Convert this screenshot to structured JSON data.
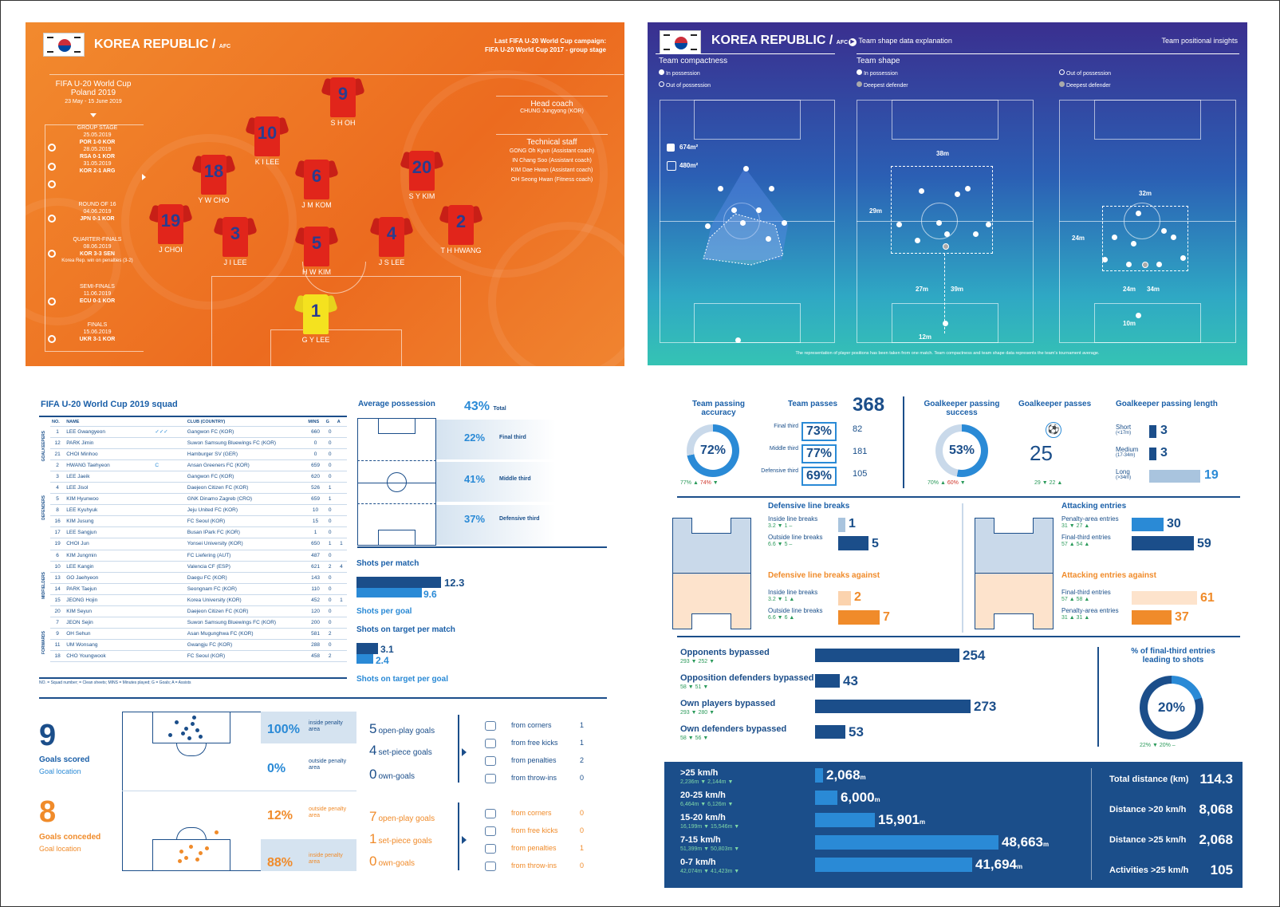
{
  "orange": {
    "team": "KOREA REPUBLIC",
    "slash": "/",
    "conf": "AFC",
    "last_campaign": "Last FIFA U-20 World Cup campaign:",
    "last_campaign2": "FIFA U-20 World Cup 2017 - group stage",
    "tournament": "FIFA U-20 World Cup",
    "tournament2": "Poland 2019",
    "dates": "23 May - 15 June 2019",
    "head_coach_label": "Head coach",
    "head_coach": "CHUNG Jungyong (KOR)",
    "staff_label": "Technical staff",
    "staff": [
      "GONG Oh Kyun (Assistant coach)",
      "IN Chang Soo (Assistant coach)",
      "KIM Dae Hwan (Assistant coach)",
      "OH Seong Hwan (Fitness coach)"
    ],
    "schedule": [
      {
        "stage": "GROUP STAGE",
        "lines": [
          "25.05.2019",
          "POR 1-0 KOR",
          "28.05.2019",
          "RSA 0-1 KOR",
          "31.05.2019",
          "KOR 2-1 ARG"
        ]
      },
      {
        "stage": "ROUND OF 16",
        "lines": [
          "04.06.2019",
          "JPN 0-1 KOR"
        ]
      },
      {
        "stage": "QUARTER-FINALS",
        "lines": [
          "08.06.2019",
          "KOR 3-3 SEN",
          "Korea Rep. win on penalties (3-2)"
        ]
      },
      {
        "stage": "SEMI-FINALS",
        "lines": [
          "11.06.2019",
          "ECU 0-1 KOR"
        ]
      },
      {
        "stage": "FINALS",
        "lines": [
          "15.06.2019",
          "UKR 3-1 KOR"
        ]
      }
    ],
    "players": [
      {
        "num": "9",
        "name": "S H OH"
      },
      {
        "num": "10",
        "name": "K I LEE"
      },
      {
        "num": "18",
        "name": "Y W CHO"
      },
      {
        "num": "6",
        "name": "J M KOM"
      },
      {
        "num": "20",
        "name": "S Y KIM"
      },
      {
        "num": "19",
        "name": "J CHOI"
      },
      {
        "num": "3",
        "name": "J I LEE"
      },
      {
        "num": "5",
        "name": "H W KIM"
      },
      {
        "num": "4",
        "name": "J S LEE"
      },
      {
        "num": "2",
        "name": "T H HWANG"
      },
      {
        "num": "1",
        "name": "G Y LEE"
      }
    ]
  },
  "blue": {
    "team": "KOREA REPUBLIC",
    "slash": "/",
    "conf": "AFC",
    "expl": "Team shape data explanation",
    "insights": "Team positional insights",
    "compact_title": "Team compactness",
    "shape_title": "Team shape",
    "in_poss": "In possession",
    "out_poss": "Out of possession",
    "deepest": "Deepest defender",
    "area_in": "674m²",
    "area_out": "480m²",
    "m1": "38m",
    "m2": "29m",
    "m3": "27m",
    "m4": "39m",
    "m5": "12m",
    "m6": "32m",
    "m7": "24m",
    "m8": "24m",
    "m9": "34m",
    "m10": "10m",
    "footnote": "The representation of player positions has been taken from one match. Team compactness and team shape data represents the team's tournament average."
  },
  "squad": {
    "title": "FIFA U-20 World Cup 2019 squad",
    "headers": [
      "NO.",
      "NAME",
      "CLUB (COUNTRY)",
      "MINS",
      "G",
      "A"
    ],
    "groups": [
      "GOALKEEPERS",
      "DEFENDERS",
      "MIDFIELDERS",
      "FORWARDS"
    ],
    "rows": [
      [
        "1",
        "LEE Gwangyeon",
        "Gangwon FC (KOR)",
        "660",
        "0",
        ""
      ],
      [
        "12",
        "PARK Jimin",
        "Suwon Samsung Bluewings FC (KOR)",
        "0",
        "0",
        ""
      ],
      [
        "21",
        "CHOI Minhoo",
        "Hamburger SV (GER)",
        "0",
        "0",
        ""
      ],
      [
        "2",
        "HWANG Taehyeon",
        "Ansan Greeners FC (KOR)",
        "659",
        "0",
        ""
      ],
      [
        "3",
        "LEE Jaeik",
        "Gangwon FC (KOR)",
        "620",
        "0",
        ""
      ],
      [
        "4",
        "LEE Jisol",
        "Daejeon Citizen FC (KOR)",
        "526",
        "1",
        ""
      ],
      [
        "5",
        "KIM Hyunwoo",
        "GNK Dinamo Zagreb (CRO)",
        "659",
        "1",
        ""
      ],
      [
        "8",
        "LEE Kyuhyuk",
        "Jeju United FC (KOR)",
        "10",
        "0",
        ""
      ],
      [
        "16",
        "KIM Jusung",
        "FC Seoul (KOR)",
        "15",
        "0",
        ""
      ],
      [
        "17",
        "LEE Sangjun",
        "Busan IPark FC (KOR)",
        "1",
        "0",
        ""
      ],
      [
        "19",
        "CHOI Jun",
        "Yonsei University (KOR)",
        "650",
        "1",
        "1"
      ],
      [
        "6",
        "KIM Jungmin",
        "FC Liefering (AUT)",
        "487",
        "0",
        ""
      ],
      [
        "10",
        "LEE Kangin",
        "Valencia CF (ESP)",
        "621",
        "2",
        "4"
      ],
      [
        "13",
        "GO Jaehyeon",
        "Daegu FC (KOR)",
        "143",
        "0",
        ""
      ],
      [
        "14",
        "PARK Taejun",
        "Seongnam FC (KOR)",
        "110",
        "0",
        ""
      ],
      [
        "15",
        "JEONG Hojin",
        "Korea University (KOR)",
        "452",
        "0",
        "1"
      ],
      [
        "20",
        "KIM Seyun",
        "Daejeon Citizen FC (KOR)",
        "120",
        "0",
        ""
      ],
      [
        "7",
        "JEON Sejin",
        "Suwon Samsung Bluewings FC (KOR)",
        "200",
        "0",
        ""
      ],
      [
        "9",
        "OH Sehun",
        "Asan Mugunghwa FC (KOR)",
        "581",
        "2",
        ""
      ],
      [
        "11",
        "UM Wonsang",
        "Gwangju FC (KOR)",
        "288",
        "0",
        ""
      ],
      [
        "18",
        "CHO Youngwook",
        "FC Seoul (KOR)",
        "458",
        "2",
        ""
      ]
    ],
    "captain": "C",
    "footnote": "NO. = Squad number; = Clean sheets; MINS = Minutes played; G = Goals; A = Assists"
  },
  "possession": {
    "title": "Average possession",
    "total": "43%",
    "total_label": "Total",
    "zones": [
      {
        "v": "22%",
        "l": "Final third"
      },
      {
        "v": "41%",
        "l": "Middle third"
      },
      {
        "v": "37%",
        "l": "Defensive third"
      }
    ]
  },
  "shots": {
    "per_match_label": "Shots per match",
    "per_match": "12.3",
    "per_goal": "9.6",
    "per_goal_label": "Shots per goal",
    "target_label": "Shots on target per match",
    "target": "3.1",
    "target_goal": "2.4",
    "target_goal_label": "Shots on target per goal"
  },
  "goals": {
    "scored": "9",
    "scored_label": "Goals scored",
    "loc": "Goal location",
    "conceded": "8",
    "conceded_label": "Goals conceded",
    "s_in": "100%",
    "s_out": "0%",
    "c_out": "12%",
    "c_in": "88%",
    "inside": "inside penalty area",
    "outside": "outside penalty area",
    "s_types": [
      {
        "n": "5",
        "l": "open-play goals"
      },
      {
        "n": "4",
        "l": "set-piece goals"
      },
      {
        "n": "0",
        "l": "own-goals"
      }
    ],
    "c_types": [
      {
        "n": "7",
        "l": "open-play goals"
      },
      {
        "n": "1",
        "l": "set-piece goals"
      },
      {
        "n": "0",
        "l": "own-goals"
      }
    ],
    "s_set": [
      {
        "l": "from corners",
        "v": "1"
      },
      {
        "l": "from free kicks",
        "v": "1"
      },
      {
        "l": "from penalties",
        "v": "2"
      },
      {
        "l": "from throw-ins",
        "v": "0"
      }
    ],
    "c_set": [
      {
        "l": "from corners",
        "v": "0"
      },
      {
        "l": "from free kicks",
        "v": "0"
      },
      {
        "l": "from penalties",
        "v": "1"
      },
      {
        "l": "from throw-ins",
        "v": "0"
      }
    ]
  },
  "passing": {
    "acc_label": "Team passing accuracy",
    "acc": "72%",
    "acc_sub1": "77%",
    "acc_sub2": "74%",
    "passes_label": "Team passes",
    "passes": "368",
    "thirds": [
      {
        "l": "Final third",
        "p": "73%",
        "n": "82"
      },
      {
        "l": "Middle third",
        "p": "77%",
        "n": "181"
      },
      {
        "l": "Defensive third",
        "p": "69%",
        "n": "105"
      }
    ],
    "gk_succ_label": "Goalkeeper passing success",
    "gk_succ": "53%",
    "gk_sub1": "70%",
    "gk_sub2": "60%",
    "gk_passes_label": "Goalkeeper passes",
    "gk_passes": "25",
    "gkp_sub1": "29",
    "gkp_sub2": "22",
    "gk_len_label": "Goalkeeper passing length",
    "len": [
      {
        "l": "Short",
        "s": "(<17m)",
        "v": "3"
      },
      {
        "l": "Medium",
        "s": "(17-34m)",
        "v": "3"
      },
      {
        "l": "Long",
        "s": "(>34m)",
        "v": "19"
      }
    ]
  },
  "linebreaks": {
    "title": "Defensive line breaks",
    "inside": "Inside line breaks",
    "outside": "Outside line breaks",
    "in_v": "1",
    "in_s1": "3.2",
    "in_s2": "1",
    "out_v": "5",
    "out_s1": "6.6",
    "out_s2": "5",
    "against": "Defensive line breaks against",
    "a_in_v": "2",
    "a_in_s1": "3.2",
    "a_in_s2": "1",
    "a_out_v": "7",
    "a_out_s1": "6.6",
    "a_out_s2": "6"
  },
  "entries": {
    "title": "Attacking entries",
    "pen": "Penalty-area entries",
    "fin": "Final-third entries",
    "pen_v": "30",
    "pen_s1": "31",
    "pen_s2": "27",
    "fin_v": "59",
    "fin_s1": "57",
    "fin_s2": "54",
    "against": "Attacking entries against",
    "a_fin_v": "61",
    "a_fin_s1": "57",
    "a_fin_s2": "58",
    "a_pen_v": "37",
    "a_pen_s1": "31",
    "a_pen_s2": "31"
  },
  "bypassed": {
    "rows": [
      {
        "l": "Opponents bypassed",
        "v": "254",
        "n": 254,
        "s1": "293",
        "s2": "252"
      },
      {
        "l": "Opposition defenders bypassed",
        "v": "43",
        "n": 43,
        "s1": "58",
        "s2": "51"
      },
      {
        "l": "Own players bypassed",
        "v": "273",
        "n": 273,
        "s1": "293",
        "s2": "280"
      },
      {
        "l": "Own defenders bypassed",
        "v": "53",
        "n": 53,
        "s1": "58",
        "s2": "56"
      }
    ],
    "pct_label": "% of final-third entries leading to shots",
    "pct": "20%",
    "pct_s1": "22%",
    "pct_s2": "20%"
  },
  "distance": {
    "rows": [
      {
        "l": ">25 km/h",
        "v": "2,068",
        "n": 2068,
        "s1": "2,236m",
        "s2": "2,144m"
      },
      {
        "l": "20-25 km/h",
        "v": "6,000",
        "n": 6000,
        "s1": "6,464m",
        "s2": "6,126m"
      },
      {
        "l": "15-20 km/h",
        "v": "15,901",
        "n": 15901,
        "s1": "16,199m",
        "s2": "15,546m"
      },
      {
        "l": "7-15 km/h",
        "v": "48,663",
        "n": 48663,
        "s1": "51,399m",
        "s2": "50,803m"
      },
      {
        "l": "0-7 km/h",
        "v": "41,694",
        "n": 41694,
        "s1": "42,074m",
        "s2": "41,423m"
      }
    ],
    "unit": "m",
    "totals": [
      {
        "l": "Total distance (km)",
        "v": "114.3"
      },
      {
        "l": "Distance >20 km/h",
        "v": "8,068"
      },
      {
        "l": "Distance >25 km/h",
        "v": "2,068"
      },
      {
        "l": "Activities >25 km/h",
        "v": "105"
      }
    ]
  }
}
